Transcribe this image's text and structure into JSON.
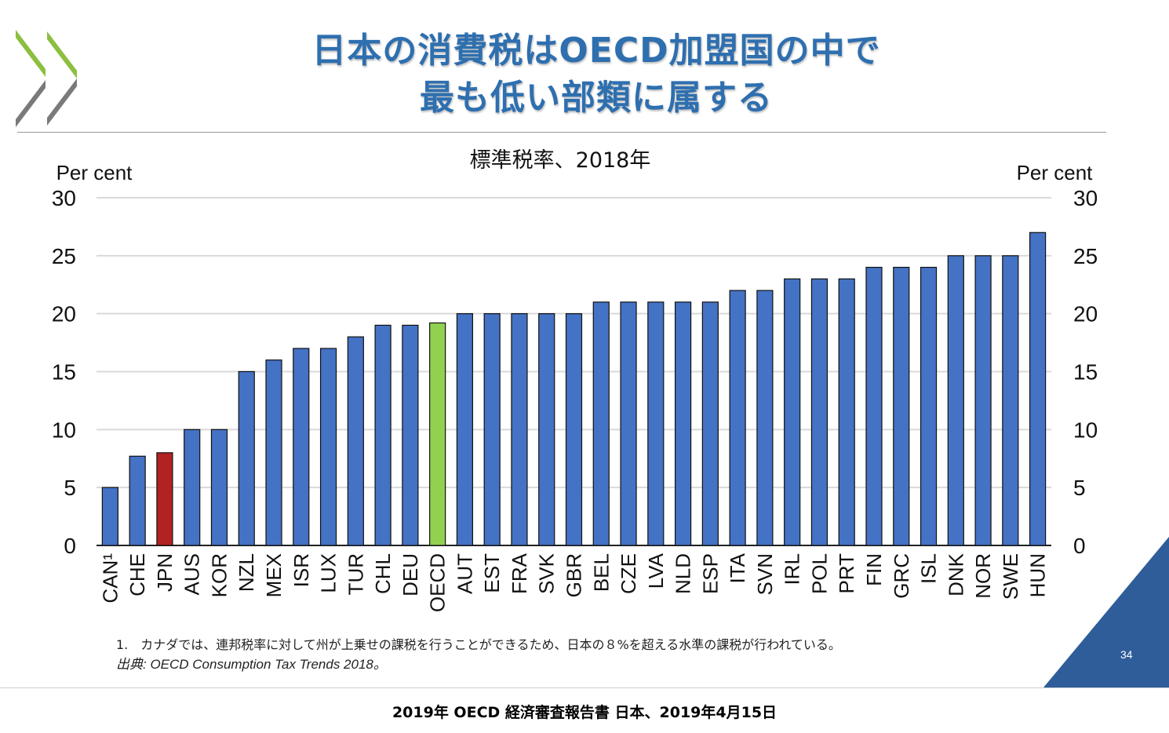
{
  "slide": {
    "title_line1": "日本の消費税はOECD加盟国の中で",
    "title_line2": "最も低い部類に属する",
    "page_number": "34",
    "footnote": "1.　カナダでは、連邦税率に対して州が上乗せの課税を行うことができるため、日本の８%を超える水準の課税が行われている。",
    "source": "出典: OECD Consumption Tax Trends 2018。",
    "logo": "oecd-chevron-logo",
    "colors": {
      "title": "#2E6FAF",
      "bar": "#4472C4",
      "japan": "#B22222",
      "oecd": "#92D050",
      "corner": "#2E5D9A"
    }
  },
  "caption": "2019年 OECD 経済審査報告書 日本、2019年4月15日",
  "chart_data": {
    "type": "bar",
    "title": "標準税率、2018年",
    "ylabel_left": "Per cent",
    "ylabel_right": "Per cent",
    "ylim": [
      0,
      30
    ],
    "yticks": [
      "0",
      "5",
      "10",
      "15",
      "20",
      "25",
      "30"
    ],
    "grid": true,
    "categories": [
      "CAN¹",
      "CHE",
      "JPN",
      "AUS",
      "KOR",
      "NZL",
      "MEX",
      "ISR",
      "LUX",
      "TUR",
      "CHL",
      "DEU",
      "OECD",
      "AUT",
      "EST",
      "FRA",
      "SVK",
      "GBR",
      "BEL",
      "CZE",
      "LVA",
      "NLD",
      "ESP",
      "ITA",
      "SVN",
      "IRL",
      "POL",
      "PRT",
      "FIN",
      "GRC",
      "ISL",
      "DNK",
      "NOR",
      "SWE",
      "HUN"
    ],
    "values": [
      5,
      7.7,
      8,
      10,
      10,
      15,
      16,
      17,
      17,
      18,
      19,
      19,
      19.2,
      20,
      20,
      20,
      20,
      20,
      21,
      21,
      21,
      21,
      21,
      22,
      22,
      23,
      23,
      23,
      24,
      24,
      24,
      25,
      25,
      25,
      27
    ],
    "highlight": {
      "JPN": "#B22222",
      "OECD": "#92D050"
    }
  }
}
